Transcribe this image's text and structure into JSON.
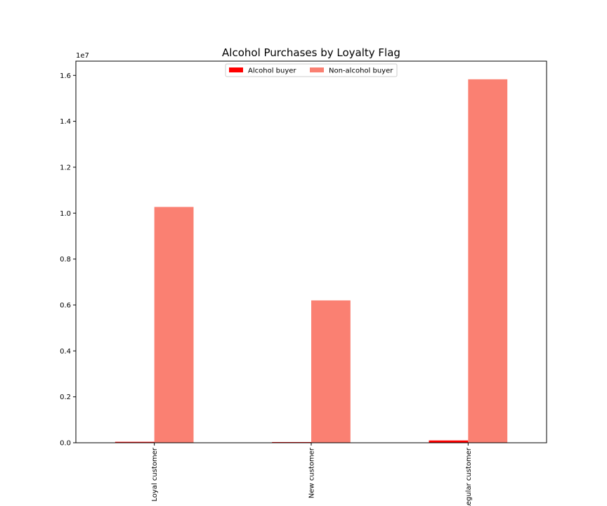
{
  "chart_data": {
    "type": "bar",
    "title": "Alcohol Purchases by Loyalty Flag",
    "xlabel": "",
    "ylabel": "",
    "scale_label": "1e7",
    "categories": [
      "Loyal customer",
      "New customer",
      "Regular customer"
    ],
    "series": [
      {
        "name": "Alcohol buyer",
        "color": "#ff0000",
        "values": [
          40000,
          30000,
          100000
        ]
      },
      {
        "name": "Non-alcohol buyer",
        "color": "#fa8072",
        "values": [
          10270000,
          6200000,
          15830000
        ]
      }
    ],
    "ylim": [
      0,
      16620000
    ],
    "yticks": [
      0,
      2000000,
      4000000,
      6000000,
      8000000,
      10000000,
      12000000,
      14000000,
      16000000
    ],
    "ytick_labels": [
      "0.0",
      "0.2",
      "0.4",
      "0.6",
      "0.8",
      "1.0",
      "1.2",
      "1.4",
      "1.6"
    ],
    "grid": false,
    "legend_position": "top-center"
  }
}
